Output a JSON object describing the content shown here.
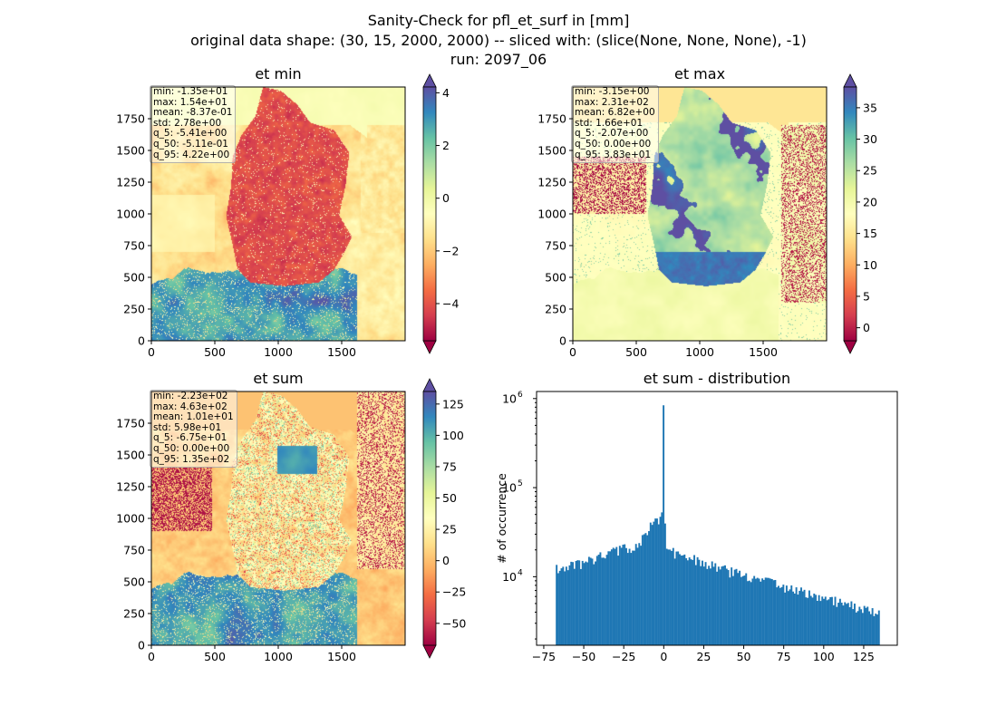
{
  "figure": {
    "suptitle": [
      "Sanity-Check for pfl_et_surf in [mm]",
      "original data shape: (30, 15, 2000, 2000) -- sliced with: (slice(None, None, None), -1)",
      "run: 2097_06"
    ]
  },
  "chart_data": [
    {
      "type": "heatmap",
      "title": "et min",
      "colormap": "Spectral",
      "xlim": [
        0,
        2000
      ],
      "ylim": [
        0,
        2000
      ],
      "xticks": [
        "0",
        "500",
        "1000",
        "1500"
      ],
      "yticks": [
        "0",
        "250",
        "500",
        "750",
        "1000",
        "1250",
        "1500",
        "1750"
      ],
      "colorbar": {
        "min": -5.41,
        "max": 4.22,
        "extend": "both",
        "ticks": [
          -4,
          -2,
          0,
          2,
          4
        ],
        "ticklabels": [
          "−4",
          "−2",
          "0",
          "2",
          "4"
        ]
      },
      "stats": [
        "min: -1.35e+01",
        "max: 1.54e+01",
        "mean: -8.37e-01",
        "std: 2.78e+00",
        "q_5: -5.41e+00",
        "q_50: -5.11e-01",
        "q_95: 4.22e+00"
      ]
    },
    {
      "type": "heatmap",
      "title": "et max",
      "colormap": "Spectral",
      "xlim": [
        0,
        2000
      ],
      "ylim": [
        0,
        2000
      ],
      "xticks": [
        "0",
        "500",
        "1000",
        "1500"
      ],
      "yticks": [
        "0",
        "250",
        "500",
        "750",
        "1000",
        "1250",
        "1500",
        "1750"
      ],
      "colorbar": {
        "min": -2.07,
        "max": 38.3,
        "extend": "both",
        "ticks": [
          0,
          5,
          10,
          15,
          20,
          25,
          30,
          35
        ],
        "ticklabels": [
          "0",
          "5",
          "10",
          "15",
          "20",
          "25",
          "30",
          "35"
        ]
      },
      "stats": [
        "min: -3.15e+00",
        "max: 2.31e+02",
        "mean: 6.82e+00",
        "std: 1.66e+01",
        "q_5: -2.07e+00",
        "q_50: 0.00e+00",
        "q_95: 3.83e+01"
      ]
    },
    {
      "type": "heatmap",
      "title": "et sum",
      "colormap": "Spectral",
      "xlim": [
        0,
        2000
      ],
      "ylim": [
        0,
        2000
      ],
      "xticks": [
        "0",
        "500",
        "1000",
        "1500"
      ],
      "yticks": [
        "0",
        "250",
        "500",
        "750",
        "1000",
        "1250",
        "1500",
        "1750"
      ],
      "colorbar": {
        "min": -67.5,
        "max": 135,
        "extend": "both",
        "ticks": [
          -50,
          -25,
          0,
          25,
          50,
          75,
          100,
          125
        ],
        "ticklabels": [
          "−50",
          "−25",
          "0",
          "25",
          "50",
          "75",
          "100",
          "125"
        ]
      },
      "stats": [
        "min: -2.23e+02",
        "max: 4.63e+02",
        "mean: 1.01e+01",
        "std: 5.98e+01",
        "q_5: -6.75e+01",
        "q_50: 0.00e+00",
        "q_95: 1.35e+02"
      ]
    },
    {
      "type": "bar",
      "title": "et sum - distribution",
      "ylabel": "# of occurrence",
      "xlabel": "",
      "yscale": "log",
      "ylim": [
        1700,
        1200000
      ],
      "xlim": [
        -79.5,
        146
      ],
      "xticks": [
        -75,
        -50,
        -25,
        0,
        25,
        50,
        75,
        100,
        125
      ],
      "xticklabels": [
        "−75",
        "−50",
        "−25",
        "0",
        "25",
        "50",
        "75",
        "100",
        "125"
      ],
      "yticks": [
        10000,
        100000,
        1000000
      ],
      "color": "#1f77b4",
      "bin_range": [
        -67.5,
        135
      ],
      "bin_count": 200,
      "profile": [
        [
          -67.5,
          12000
        ],
        [
          -50,
          14000
        ],
        [
          -40,
          16500
        ],
        [
          -30,
          19500
        ],
        [
          -20,
          21000
        ],
        [
          -12,
          28000
        ],
        [
          -9,
          38000
        ],
        [
          -6,
          48000
        ],
        [
          -4,
          40000
        ],
        [
          -2,
          50000
        ],
        [
          -1,
          60000
        ],
        [
          0,
          840000
        ],
        [
          1,
          22000
        ],
        [
          2,
          21000
        ],
        [
          10,
          17000
        ],
        [
          25,
          14500
        ],
        [
          40,
          11500
        ],
        [
          55,
          9500
        ],
        [
          70,
          8200
        ],
        [
          85,
          6800
        ],
        [
          100,
          5800
        ],
        [
          115,
          4800
        ],
        [
          125,
          4200
        ],
        [
          135,
          3700
        ]
      ]
    }
  ]
}
